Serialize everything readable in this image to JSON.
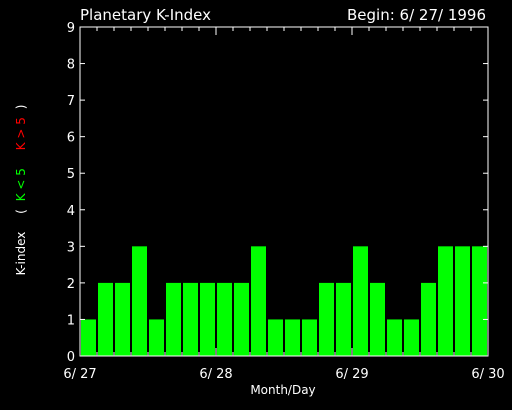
{
  "chart_data": {
    "type": "bar",
    "title": "Planetary K-Index",
    "subtitle": "Begin:  6/ 27/ 1996",
    "xlabel": "Month/Day",
    "ylabel": {
      "prefix": "K-index",
      "open": "(",
      "low": "K < 5",
      "high": "K > 5",
      "close": ")"
    },
    "ylim": [
      0,
      9
    ],
    "yticks": [
      "0",
      "1",
      "2",
      "3",
      "4",
      "5",
      "6",
      "7",
      "8",
      "9"
    ],
    "xticks": [
      "6/ 27",
      "6/ 28",
      "6/ 29",
      "6/ 30"
    ],
    "values": [
      1,
      2,
      2,
      3,
      1,
      2,
      2,
      2,
      2,
      2,
      3,
      1,
      1,
      1,
      2,
      2,
      3,
      2,
      1,
      1,
      2,
      3,
      3,
      3
    ],
    "colors": {
      "background": "#000000",
      "bar_low": "#00ff00",
      "bar_high": "#ff0000",
      "label_low": "#00ff00",
      "label_high": "#ff0000",
      "axis": "#ffffff"
    }
  }
}
